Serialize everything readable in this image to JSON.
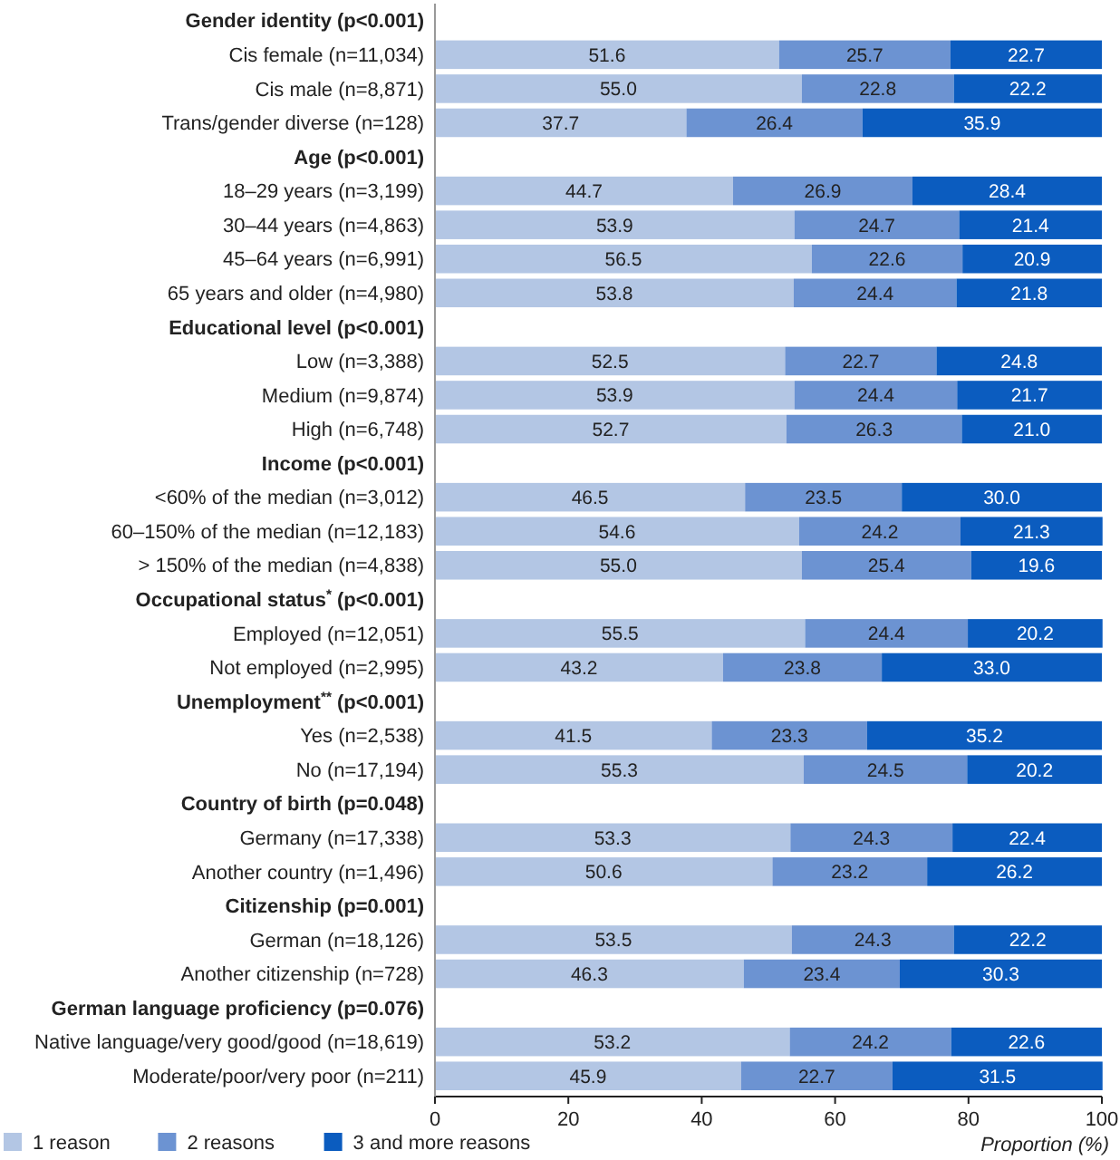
{
  "chart_data": {
    "type": "bar",
    "orientation": "horizontal",
    "stacked": true,
    "legend": "bottom",
    "grid": false,
    "xlabel": "Proportion (%)",
    "xlim": [
      0,
      100
    ],
    "xticks": [
      0,
      20,
      40,
      60,
      80,
      100
    ],
    "categories": [
      "Gender identity (p<0.001)",
      "Cis female (n=11,034)",
      "Cis male (n=8,871)",
      "Trans/gender diverse (n=128)",
      "Age (p<0.001)",
      "18–29 years (n=3,199)",
      "30–44 years (n=4,863)",
      "45–64 years (n=6,991)",
      "65 years and older (n=4,980)",
      "Educational level (p<0.001)",
      "Low (n=3,388)",
      "Medium (n=9,874)",
      "High (n=6,748)",
      "Income (p<0.001)",
      "<60% of the median (n=3,012)",
      "60–150% of the median (n=12,183)",
      "> 150% of the median (n=4,838)",
      "Occupational status$^{*}$ (p<0.001)",
      "Employed (n=12,051)",
      "Not employed (n=2,995)",
      "Unemployment$^{**}$ (p<0.001)",
      "Yes (n=2,538)",
      "No (n=17,194)",
      "Country of birth (p=0.048)",
      "Germany (n=17,338)",
      "Another country (n=1,496)",
      "Citizenship (p=0.001)",
      "German (n=18,126)",
      "Another citizenship (n=728)",
      "German language proficiency (p=0.076)",
      "Native language/very good/good (n=18,619)",
      "Moderate/poor/very poor (n=211)"
    ],
    "series": [
      {
        "name": "1 reason",
        "color": "#b3c6e4",
        "values": [
          null,
          51.6,
          55.0,
          37.7,
          null,
          44.7,
          53.9,
          56.5,
          53.8,
          null,
          52.5,
          53.9,
          52.7,
          null,
          46.5,
          54.6,
          55.0,
          null,
          55.5,
          43.2,
          null,
          41.5,
          55.3,
          null,
          53.3,
          50.6,
          null,
          53.5,
          46.3,
          null,
          53.2,
          45.9
        ],
        "value_labels": [
          null,
          "51.6",
          "55.0",
          "37.7",
          null,
          "44.7",
          "53.9",
          "56.5",
          "53.8",
          null,
          "52.5",
          "53.9",
          "52.7",
          null,
          "46.5",
          "54.6",
          "55.0",
          null,
          "55.5",
          "43.2",
          null,
          "41.5",
          "55.3",
          null,
          "53.3",
          "50.6",
          null,
          "53.5",
          "46.3",
          null,
          "53.2",
          "45.9"
        ]
      },
      {
        "name": "2 reasons",
        "color": "#6c93d2",
        "values": [
          null,
          25.7,
          22.8,
          26.4,
          null,
          26.9,
          24.7,
          22.6,
          24.4,
          null,
          22.7,
          24.4,
          26.3,
          null,
          23.5,
          24.2,
          25.4,
          null,
          24.4,
          23.8,
          null,
          23.3,
          24.5,
          null,
          24.3,
          23.2,
          null,
          24.3,
          23.4,
          null,
          24.2,
          22.7
        ],
        "value_labels": [
          null,
          "25.7",
          "22.8",
          "26.4",
          null,
          "26.9",
          "24.7",
          "22.6",
          "24.4",
          null,
          "22.7",
          "24.4",
          "26.3",
          null,
          "23.5",
          "24.2",
          "25.4",
          null,
          "24.4",
          "23.8",
          null,
          "23.3",
          "24.5",
          null,
          "24.3",
          "23.2",
          null,
          "24.3",
          "23.4",
          null,
          "24.2",
          "22.7"
        ]
      },
      {
        "name": "3 and more reasons",
        "color": "#0b5cbf",
        "values": [
          null,
          22.7,
          22.2,
          35.9,
          null,
          28.4,
          21.4,
          20.9,
          21.8,
          null,
          24.8,
          21.7,
          21.0,
          null,
          30.0,
          21.3,
          19.6,
          null,
          20.2,
          33.0,
          null,
          35.2,
          20.2,
          null,
          22.4,
          26.2,
          null,
          22.2,
          30.3,
          null,
          22.6,
          31.5
        ],
        "value_labels": [
          null,
          "22.7",
          "22.2",
          "35.9",
          null,
          "28.4",
          "21.4",
          "20.9",
          "21.8",
          null,
          "24.8",
          "21.7",
          "21.0",
          null,
          "30.0",
          "21.3",
          "19.6",
          null,
          "20.2",
          "33.0",
          null,
          "35.2",
          "20.2",
          null,
          "22.4",
          "26.2",
          null,
          "22.2",
          "30.3",
          null,
          "22.6",
          "31.5"
        ]
      }
    ]
  }
}
